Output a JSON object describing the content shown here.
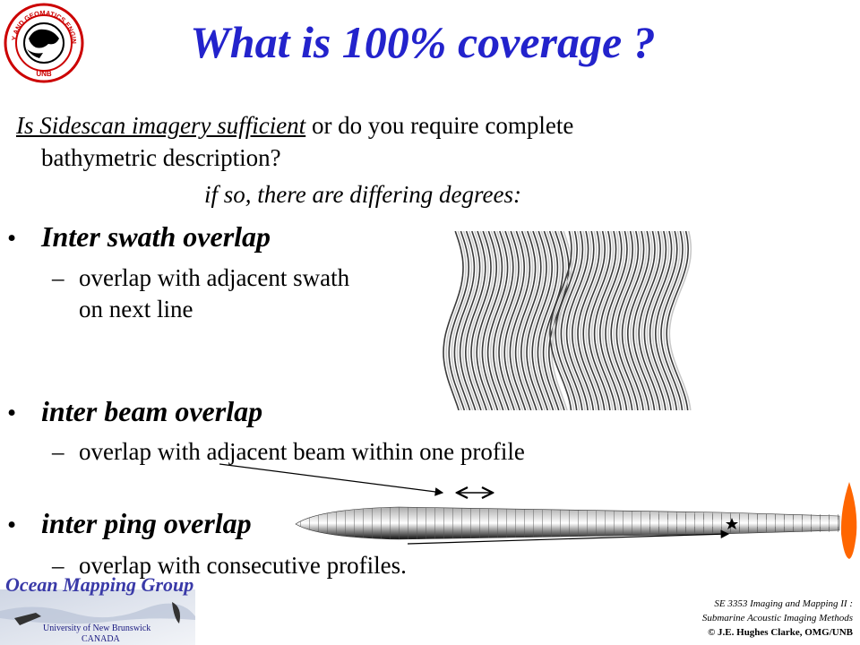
{
  "slide": {
    "title": "What is 100% coverage ?",
    "logo_text": "GEODESY AND GEOMATICS ENGINEERING",
    "logo_short": "UNB",
    "intro": {
      "line1_em": "Is Sidescan imagery sufficient",
      "line1_rest": " or do you require complete",
      "line2": "bathymetric description?",
      "line3": "if so, there are differing degrees:"
    },
    "bullets": [
      {
        "title": "Inter swath overlap",
        "sub": [
          "overlap with adjacent swath",
          "on next line"
        ]
      },
      {
        "title": "inter beam overlap",
        "sub": [
          "overlap with adjacent beam within one profile"
        ]
      },
      {
        "title": "inter ping overlap",
        "sub": [
          "overlap with consecutive profiles."
        ]
      }
    ],
    "footer": {
      "group": "Ocean Mapping Group",
      "university": "University of New Brunswick",
      "country": "CANADA",
      "course": "SE 3353 Imaging and Mapping II :",
      "subtitle": "Submarine Acoustic Imaging Methods",
      "credit": "© J.E. Hughes Clarke, OMG/UNB"
    }
  },
  "colors": {
    "title": "#2323cc",
    "flame": "#ff6600",
    "omg": "#3a3aa8"
  }
}
